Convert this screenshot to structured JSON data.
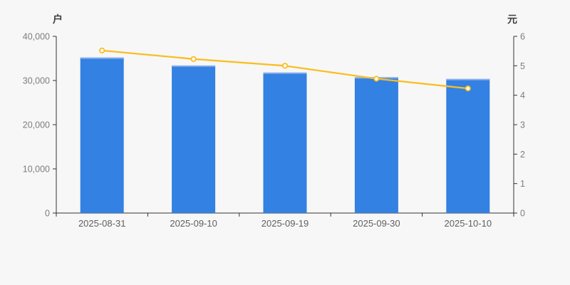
{
  "chart_data": {
    "type": "bar+line",
    "title": "",
    "categories": [
      "2025-08-31",
      "2025-09-10",
      "2025-09-19",
      "2025-09-30",
      "2025-10-10"
    ],
    "bar_series": {
      "axis": "left",
      "unit": "户",
      "color": "#3381e2",
      "cap_color": "#8cafeb",
      "values": [
        35200,
        33400,
        31800,
        30750,
        30350
      ]
    },
    "line_series": {
      "axis": "right",
      "unit": "元",
      "color": "#f9be21",
      "marker_fill": "#ffffff",
      "values": [
        5.52,
        5.23,
        5.0,
        4.56,
        4.23
      ]
    },
    "left_axis": {
      "label": "户",
      "min": 0,
      "max": 40000,
      "ticks": [
        0,
        10000,
        20000,
        30000,
        40000
      ],
      "tick_labels": [
        "0",
        "10,000",
        "20,000",
        "30,000",
        "40,000"
      ]
    },
    "right_axis": {
      "label": "元",
      "min": 0,
      "max": 6,
      "ticks": [
        0,
        1,
        2,
        3,
        4,
        5,
        6
      ],
      "tick_labels": [
        "0",
        "1",
        "2",
        "3",
        "4",
        "5",
        "6"
      ]
    },
    "colors": {
      "background": "#f7f7f7",
      "axis": "#333333",
      "y_tick_label": "#7d7d7d",
      "x_tick_label": "#5f5f5f"
    },
    "legend": "none",
    "grid": "off"
  }
}
